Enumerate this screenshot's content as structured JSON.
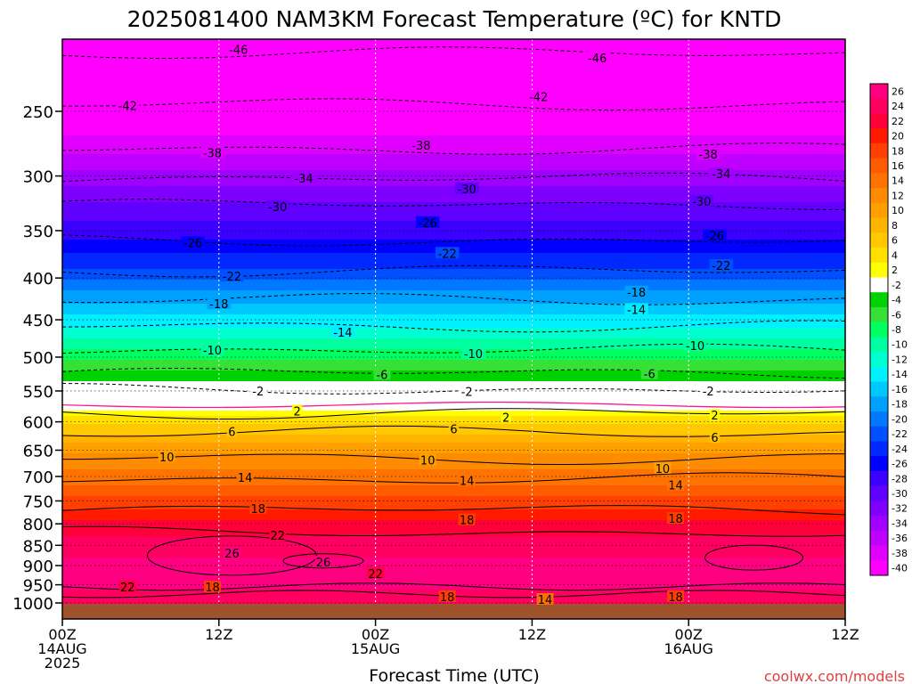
{
  "title": "2025081400 NAM3KM Forecast Temperature (ºC) for KNTD",
  "credit": "coolwx.com/models",
  "chart_data": {
    "type": "heatmap",
    "title": "2025081400 NAM3KM Forecast Temperature (ºC) for KNTD",
    "xlabel": "Forecast Time (UTC)",
    "ylabel": "",
    "x_ticks": [
      {
        "hour": 0,
        "lines": [
          "00Z",
          "14AUG",
          "2025"
        ]
      },
      {
        "hour": 12,
        "lines": [
          "12Z"
        ]
      },
      {
        "hour": 24,
        "lines": [
          "00Z",
          "15AUG"
        ]
      },
      {
        "hour": 36,
        "lines": [
          "12Z"
        ]
      },
      {
        "hour": 48,
        "lines": [
          "00Z",
          "16AUG"
        ]
      },
      {
        "hour": 60,
        "lines": [
          "12Z"
        ]
      }
    ],
    "xlim": [
      0,
      60
    ],
    "y_ticks": [
      250,
      300,
      350,
      400,
      450,
      500,
      550,
      600,
      650,
      700,
      750,
      800,
      850,
      900,
      950,
      1000
    ],
    "ylim": [
      200,
      1020
    ],
    "y_scale": "log",
    "y_inverted": true,
    "grid": true,
    "colorbar": {
      "labels": [
        "26",
        "24",
        "22",
        "20",
        "18",
        "16",
        "14",
        "12",
        "10",
        "8",
        "6",
        "4",
        "2",
        "-2",
        "-4",
        "-6",
        "-8",
        "-10",
        "-12",
        "-14",
        "-16",
        "-18",
        "-20",
        "-22",
        "-24",
        "-26",
        "-28",
        "-30",
        "-32",
        "-34",
        "-36",
        "-38",
        "-40"
      ],
      "colors": [
        "#ff0080",
        "#ff0060",
        "#ff0038",
        "#ff1a00",
        "#ff4000",
        "#ff5c00",
        "#ff7400",
        "#ff8c00",
        "#ffa000",
        "#ffb400",
        "#ffc800",
        "#ffe000",
        "#ffff00",
        "#ffffff",
        "#00d200",
        "#36e036",
        "#00ff60",
        "#00ffa0",
        "#00ffd0",
        "#00f0ff",
        "#00c8ff",
        "#00a0ff",
        "#0078ff",
        "#0050ff",
        "#0028ff",
        "#0000ff",
        "#3c00ff",
        "#6000ff",
        "#8000ff",
        "#a000ff",
        "#c000ff",
        "#e000ff",
        "#ff00ff"
      ]
    },
    "contour_labels": [
      {
        "value": -46,
        "positions": [
          [
            13.5,
            210
          ],
          [
            41,
            215
          ]
        ]
      },
      {
        "value": -42,
        "positions": [
          [
            5,
            246
          ],
          [
            36.5,
            240
          ]
        ]
      },
      {
        "value": -38,
        "positions": [
          [
            11.5,
            281
          ],
          [
            27.5,
            275
          ],
          [
            49.5,
            282
          ]
        ]
      },
      {
        "value": -34,
        "positions": [
          [
            18.5,
            302
          ],
          [
            50.5,
            298
          ]
        ]
      },
      {
        "value": -30,
        "positions": [
          [
            16.5,
            327
          ],
          [
            31,
            311
          ],
          [
            49,
            322
          ]
        ]
      },
      {
        "value": -26,
        "positions": [
          [
            10,
            362
          ],
          [
            28,
            342
          ],
          [
            50,
            355
          ]
        ]
      },
      {
        "value": -22,
        "positions": [
          [
            13,
            398
          ],
          [
            29.5,
            373
          ],
          [
            50.5,
            386
          ]
        ]
      },
      {
        "value": -18,
        "positions": [
          [
            12,
            430
          ],
          [
            44,
            416
          ]
        ]
      },
      {
        "value": -14,
        "positions": [
          [
            21.5,
            466
          ],
          [
            44,
            437
          ]
        ]
      },
      {
        "value": -10,
        "positions": [
          [
            11.5,
            490
          ],
          [
            31.5,
            495
          ],
          [
            48.5,
            484
          ]
        ]
      },
      {
        "value": -6,
        "positions": [
          [
            24.5,
            525
          ],
          [
            45,
            524
          ]
        ]
      },
      {
        "value": -2,
        "positions": [
          [
            15,
            550
          ],
          [
            31,
            551
          ],
          [
            49.5,
            550
          ]
        ]
      },
      {
        "value": 2,
        "positions": [
          [
            18,
            582
          ],
          [
            34,
            592
          ],
          [
            50,
            589
          ]
        ]
      },
      {
        "value": 6,
        "positions": [
          [
            13,
            617
          ],
          [
            30,
            612
          ],
          [
            50,
            627
          ]
        ]
      },
      {
        "value": 10,
        "positions": [
          [
            8,
            662
          ],
          [
            28,
            668
          ],
          [
            46,
            684
          ]
        ]
      },
      {
        "value": 14,
        "positions": [
          [
            14,
            702
          ],
          [
            31,
            708
          ],
          [
            47,
            717
          ]
        ]
      },
      {
        "value": 18,
        "positions": [
          [
            15,
            766
          ],
          [
            31,
            791
          ],
          [
            47,
            788
          ],
          [
            11.5,
            956
          ],
          [
            29.5,
            982
          ],
          [
            47,
            982
          ]
        ]
      },
      {
        "value": 22,
        "positions": [
          [
            16.5,
            826
          ],
          [
            5,
            956
          ],
          [
            24,
            920
          ]
        ]
      },
      {
        "value": 26,
        "positions": [
          [
            13,
            869
          ],
          [
            20,
            891
          ]
        ]
      },
      {
        "value": 14,
        "positions": [
          [
            37,
            990
          ]
        ]
      }
    ]
  }
}
